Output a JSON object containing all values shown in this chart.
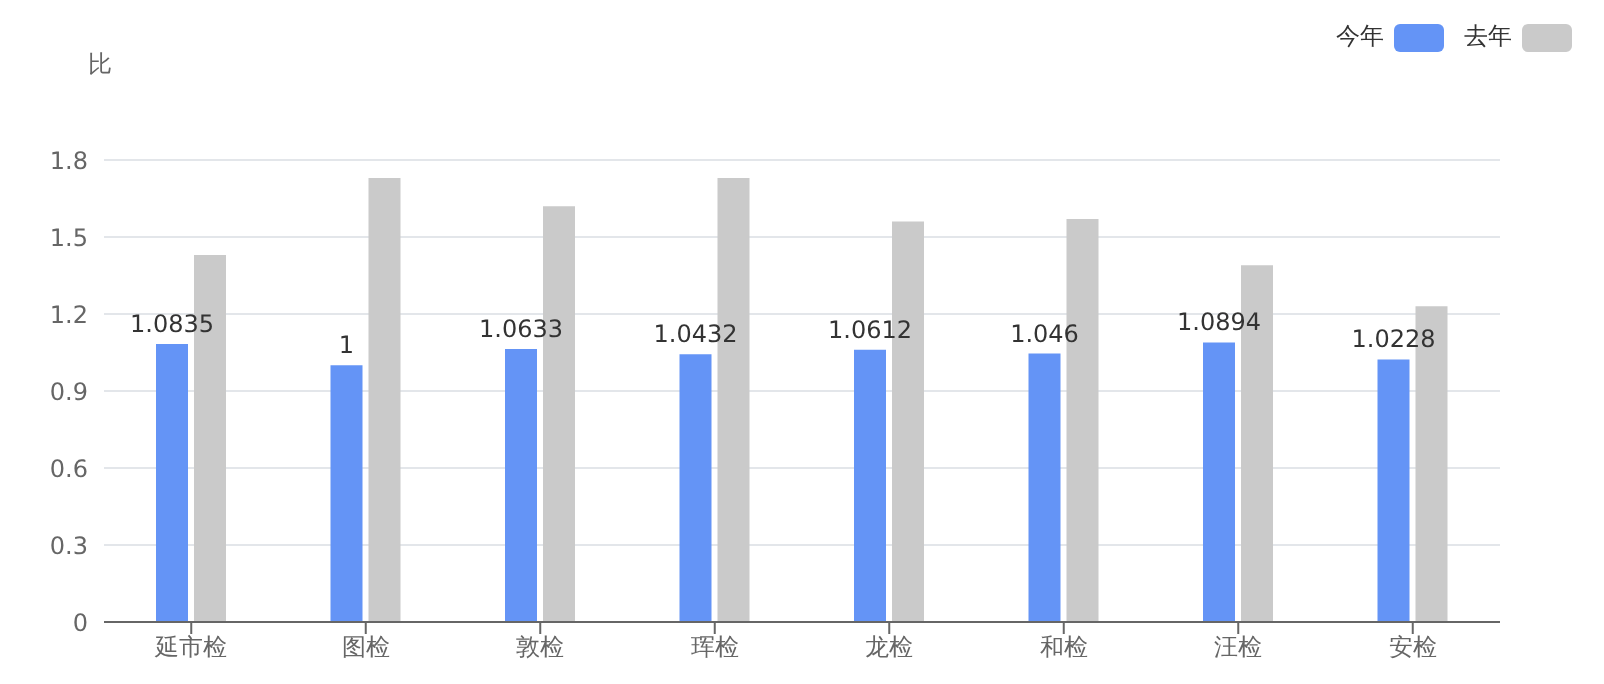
{
  "chart_data": {
    "type": "bar",
    "ylabel": "比",
    "categories": [
      "延市检",
      "图检",
      "敦检",
      "珲检",
      "龙检",
      "和检",
      "汪检",
      "安检"
    ],
    "series": [
      {
        "name": "今年",
        "color": "#6494f6",
        "values": [
          1.0835,
          1,
          1.0633,
          1.0432,
          1.0612,
          1.046,
          1.0894,
          1.0228
        ],
        "value_labels": [
          "1.0835",
          "1",
          "1.0633",
          "1.0432",
          "1.0612",
          "1.046",
          "1.0894",
          "1.0228"
        ]
      },
      {
        "name": "去年",
        "color": "#cacaca",
        "values": [
          1.43,
          1.73,
          1.62,
          1.73,
          1.56,
          1.57,
          1.39,
          1.23
        ]
      }
    ],
    "ylim": [
      0,
      1.8
    ],
    "yticks": [
      0,
      0.3,
      0.6,
      0.9,
      1.2,
      1.5,
      1.8
    ],
    "grid": "y",
    "legend": "top right"
  }
}
